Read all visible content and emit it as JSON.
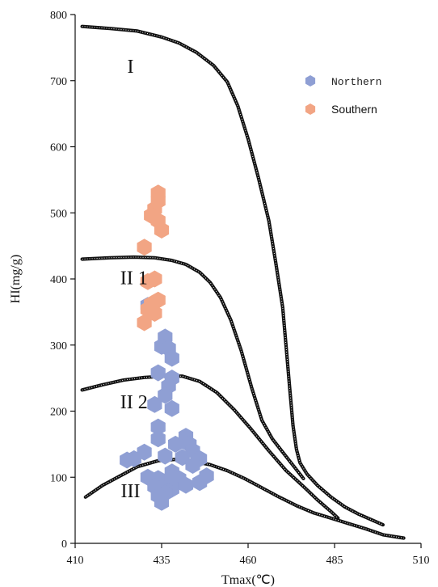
{
  "chart_data": {
    "type": "scatter",
    "xlabel": "Tmax(℃)",
    "ylabel": "HI(mg/g)",
    "xlim": [
      410,
      510
    ],
    "ylim": [
      0,
      800
    ],
    "xticks": [
      410,
      435,
      460,
      485,
      510
    ],
    "yticks": [
      0,
      100,
      200,
      300,
      400,
      500,
      600,
      700,
      800
    ],
    "grid": false,
    "legend_position": "top-right",
    "series": [
      {
        "name": "Northern",
        "color": "#8f9fd4",
        "marker": "hexagon",
        "points": [
          [
            431,
            360
          ],
          [
            436,
            312
          ],
          [
            435,
            298
          ],
          [
            437,
            295
          ],
          [
            438,
            280
          ],
          [
            434,
            258
          ],
          [
            438,
            250
          ],
          [
            437,
            238
          ],
          [
            436,
            224
          ],
          [
            433,
            210
          ],
          [
            438,
            204
          ],
          [
            434,
            176
          ],
          [
            434,
            158
          ],
          [
            439,
            150
          ],
          [
            442,
            162
          ],
          [
            443,
            150
          ],
          [
            444,
            140
          ],
          [
            446,
            128
          ],
          [
            441,
            130
          ],
          [
            436,
            132
          ],
          [
            430,
            138
          ],
          [
            427,
            128
          ],
          [
            425,
            126
          ],
          [
            431,
            100
          ],
          [
            434,
            98
          ],
          [
            433,
            86
          ],
          [
            437,
            90
          ],
          [
            438,
            108
          ],
          [
            440,
            98
          ],
          [
            438,
            82
          ],
          [
            436,
            76
          ],
          [
            434,
            72
          ],
          [
            435,
            62
          ],
          [
            442,
            88
          ],
          [
            446,
            92
          ],
          [
            448,
            102
          ],
          [
            444,
            118
          ],
          [
            438,
            100
          ]
        ]
      },
      {
        "name": "Southern",
        "color": "#f2a584",
        "marker": "hexagon",
        "points": [
          [
            434,
            530
          ],
          [
            434,
            518
          ],
          [
            433,
            506
          ],
          [
            432,
            496
          ],
          [
            434,
            488
          ],
          [
            435,
            474
          ],
          [
            430,
            448
          ],
          [
            433,
            400
          ],
          [
            431,
            396
          ],
          [
            434,
            368
          ],
          [
            432,
            362
          ],
          [
            431,
            354
          ],
          [
            430,
            334
          ],
          [
            433,
            348
          ]
        ]
      }
    ],
    "curves": [
      {
        "name": "I",
        "points": [
          [
            412,
            782
          ],
          [
            420,
            779
          ],
          [
            428,
            775
          ],
          [
            435,
            766
          ],
          [
            440,
            757
          ],
          [
            445,
            743
          ],
          [
            450,
            723
          ],
          [
            454,
            698
          ],
          [
            457,
            662
          ],
          [
            460,
            612
          ],
          [
            463,
            553
          ],
          [
            466,
            488
          ],
          [
            468,
            425
          ],
          [
            470,
            357
          ],
          [
            471,
            297
          ],
          [
            472,
            236
          ],
          [
            473,
            178
          ],
          [
            474,
            142
          ],
          [
            475,
            122
          ],
          [
            477,
            105
          ],
          [
            480,
            88
          ],
          [
            484,
            70
          ],
          [
            488,
            55
          ],
          [
            492,
            44
          ],
          [
            496,
            35
          ],
          [
            499,
            28
          ]
        ]
      },
      {
        "name": "II1",
        "points": [
          [
            412,
            430
          ],
          [
            420,
            432
          ],
          [
            427,
            433
          ],
          [
            433,
            432
          ],
          [
            438,
            428
          ],
          [
            442,
            422
          ],
          [
            446,
            410
          ],
          [
            449,
            395
          ],
          [
            452,
            372
          ],
          [
            455,
            338
          ],
          [
            458,
            292
          ],
          [
            461,
            236
          ],
          [
            464,
            186
          ],
          [
            467,
            158
          ],
          [
            470,
            138
          ],
          [
            473,
            118
          ],
          [
            476,
            98
          ]
        ]
      },
      {
        "name": "II2",
        "points": [
          [
            412,
            232
          ],
          [
            418,
            240
          ],
          [
            424,
            247
          ],
          [
            430,
            251
          ],
          [
            436,
            253
          ],
          [
            441,
            253
          ],
          [
            446,
            245
          ],
          [
            451,
            228
          ],
          [
            456,
            202
          ],
          [
            461,
            172
          ],
          [
            466,
            140
          ],
          [
            471,
            110
          ],
          [
            476,
            86
          ],
          [
            480,
            66
          ],
          [
            484,
            48
          ],
          [
            486,
            38
          ]
        ]
      },
      {
        "name": "III",
        "points": [
          [
            413,
            70
          ],
          [
            418,
            88
          ],
          [
            423,
            102
          ],
          [
            428,
            116
          ],
          [
            434,
            125
          ],
          [
            439,
            127
          ],
          [
            444,
            124
          ],
          [
            449,
            119
          ],
          [
            454,
            110
          ],
          [
            459,
            98
          ],
          [
            464,
            84
          ],
          [
            469,
            70
          ],
          [
            474,
            57
          ],
          [
            479,
            46
          ],
          [
            484,
            38
          ],
          [
            489,
            30
          ],
          [
            494,
            22
          ],
          [
            499,
            13
          ],
          [
            505,
            8
          ]
        ]
      }
    ],
    "annotations": [
      {
        "text": "I",
        "x": 426,
        "y": 712
      },
      {
        "text": "II 1",
        "x": 427,
        "y": 392
      },
      {
        "text": "II 2",
        "x": 427,
        "y": 204
      },
      {
        "text": "III",
        "x": 426,
        "y": 70
      }
    ]
  }
}
